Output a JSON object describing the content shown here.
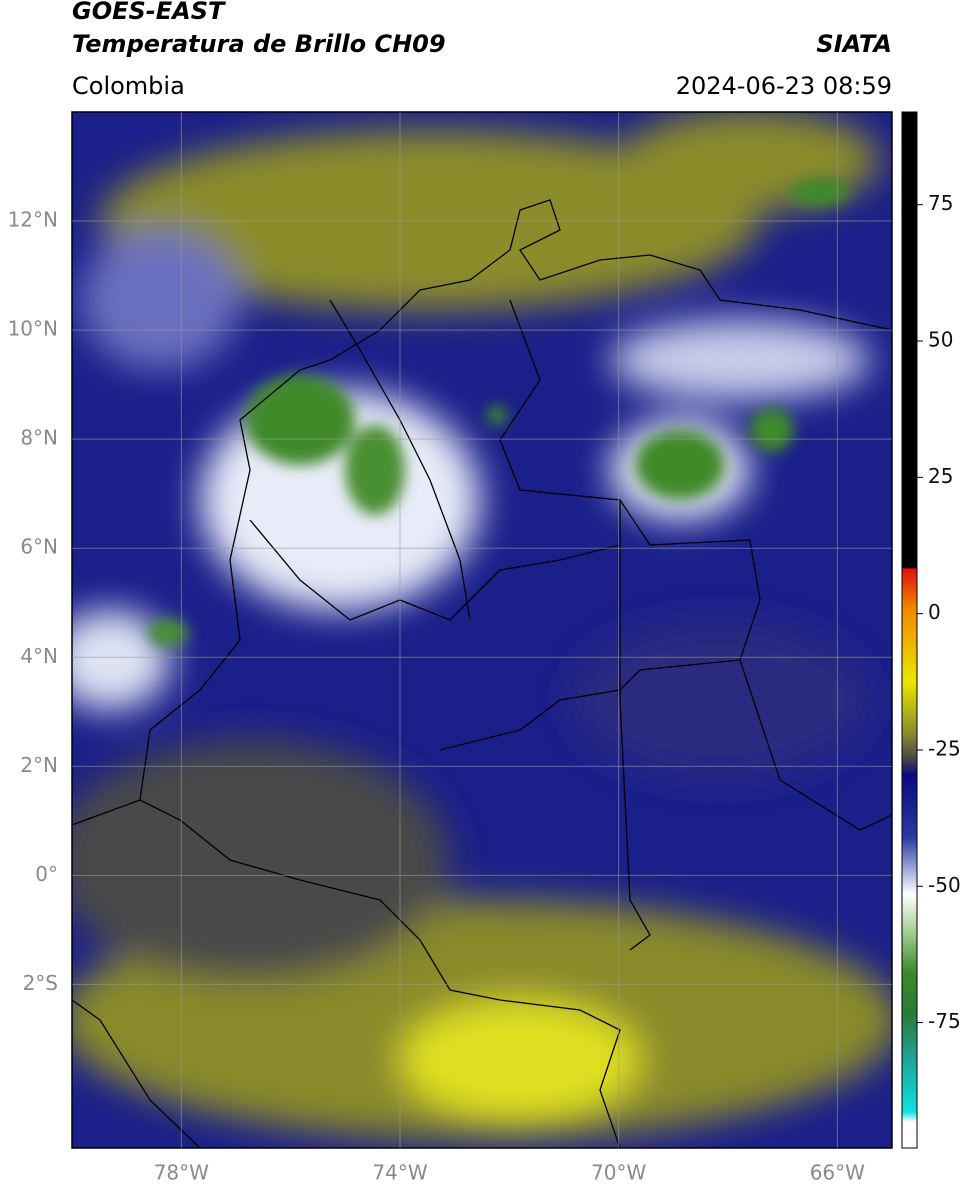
{
  "header": {
    "satellite": "GOES-EAST",
    "product": "Temperatura de Brillo CH09",
    "source": "SIATA",
    "region": "Colombia",
    "datetime": "2024-06-23 08:59"
  },
  "map": {
    "lat_range": [
      -5,
      14
    ],
    "lon_range": [
      -80,
      -65
    ],
    "lat_ticks": [
      {
        "value": 12,
        "label": "12°N"
      },
      {
        "value": 10,
        "label": "10°N"
      },
      {
        "value": 8,
        "label": "8°N"
      },
      {
        "value": 6,
        "label": "6°N"
      },
      {
        "value": 4,
        "label": "4°N"
      },
      {
        "value": 2,
        "label": "2°N"
      },
      {
        "value": 0,
        "label": "0°"
      },
      {
        "value": -2,
        "label": "2°S"
      }
    ],
    "lon_ticks": [
      {
        "value": -78,
        "label": "78°W"
      },
      {
        "value": -74,
        "label": "74°W"
      },
      {
        "value": -70,
        "label": "70°W"
      },
      {
        "value": -66,
        "label": "66°W"
      }
    ]
  },
  "colorbar": {
    "range": [
      -98,
      92
    ],
    "ticks": [
      75,
      50,
      25,
      0,
      -25,
      -50,
      -75
    ]
  }
}
